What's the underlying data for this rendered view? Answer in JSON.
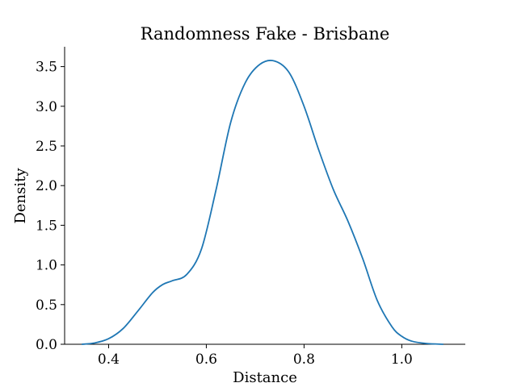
{
  "chart_data": {
    "type": "line",
    "title": "Randomness Fake - Brisbane",
    "xlabel": "Distance",
    "ylabel": "Density",
    "xlim": [
      0.31,
      1.13
    ],
    "ylim": [
      0,
      3.75
    ],
    "xticks": [
      0.4,
      0.6,
      0.8,
      1.0
    ],
    "xtick_labels": [
      "0.4",
      "0.6",
      "0.8",
      "1.0"
    ],
    "yticks": [
      0.0,
      0.5,
      1.0,
      1.5,
      2.0,
      2.5,
      3.0,
      3.5
    ],
    "ytick_labels": [
      "0.0",
      "0.5",
      "1.0",
      "1.5",
      "2.0",
      "2.5",
      "3.0",
      "3.5"
    ],
    "grid": false,
    "series": [
      {
        "color": "#1f77b4",
        "x": [
          0.345,
          0.37,
          0.4,
          0.43,
          0.46,
          0.49,
          0.51,
          0.53,
          0.56,
          0.59,
          0.62,
          0.65,
          0.68,
          0.71,
          0.74,
          0.77,
          0.8,
          0.83,
          0.86,
          0.89,
          0.92,
          0.95,
          0.98,
          1.0,
          1.02,
          1.05,
          1.085
        ],
        "y": [
          0.0,
          0.015,
          0.07,
          0.2,
          0.42,
          0.65,
          0.75,
          0.8,
          0.88,
          1.2,
          1.95,
          2.8,
          3.3,
          3.53,
          3.57,
          3.42,
          3.0,
          2.45,
          1.95,
          1.55,
          1.08,
          0.55,
          0.22,
          0.1,
          0.04,
          0.01,
          0.0
        ]
      }
    ]
  }
}
